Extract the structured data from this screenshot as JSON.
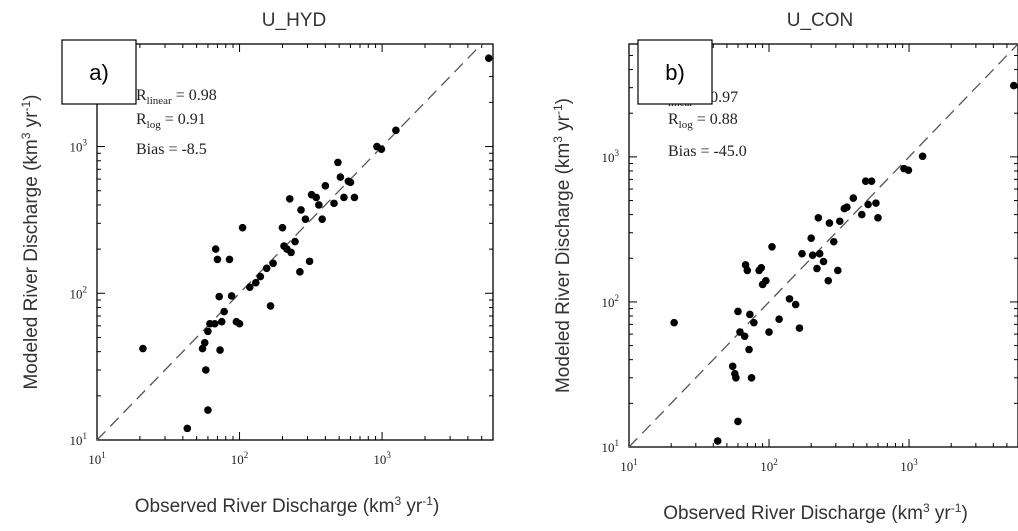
{
  "chart_data": [
    {
      "type": "scatter",
      "panel_label": "a)",
      "title": "U_HYD",
      "xlabel": "Observed River Discharge (km",
      "xlabel_sup": "3",
      "xlabel_tail": " yr",
      "xlabel_sup2": "-1",
      "xlabel_end": ")",
      "ylabel": "Modeled River Discharge (km",
      "ylabel_sup": "3",
      "ylabel_tail": " yr",
      "ylabel_sup2": "-1",
      "ylabel_end": ")",
      "xscale": "log",
      "yscale": "log",
      "xlim": [
        10,
        6000
      ],
      "ylim": [
        10,
        5000
      ],
      "xticks": [
        {
          "v": 10,
          "base": "10",
          "exp": "1"
        },
        {
          "v": 100,
          "base": "10",
          "exp": "2"
        },
        {
          "v": 1000,
          "base": "10",
          "exp": "3"
        }
      ],
      "yticks": [
        {
          "v": 10,
          "base": "10",
          "exp": "1"
        },
        {
          "v": 100,
          "base": "10",
          "exp": "2"
        },
        {
          "v": 1000,
          "base": "10",
          "exp": "3"
        }
      ],
      "reference_line": "1:1 dashed",
      "stats": [
        {
          "label": "R",
          "sub": "linear",
          "value": "= 0.98"
        },
        {
          "label": "R",
          "sub": "log",
          "value": "= 0.91"
        },
        {
          "label": "Bias =",
          "sub": "",
          "value": "-8.5"
        }
      ],
      "points": [
        [
          21,
          42
        ],
        [
          43,
          12
        ],
        [
          55,
          42
        ],
        [
          57,
          46
        ],
        [
          58,
          30
        ],
        [
          60,
          16
        ],
        [
          60,
          55
        ],
        [
          62,
          62
        ],
        [
          67,
          62
        ],
        [
          68,
          200
        ],
        [
          70,
          170
        ],
        [
          72,
          95
        ],
        [
          73,
          41
        ],
        [
          75,
          64
        ],
        [
          78,
          75
        ],
        [
          85,
          170
        ],
        [
          88,
          96
        ],
        [
          95,
          64
        ],
        [
          100,
          62
        ],
        [
          105,
          280
        ],
        [
          118,
          110
        ],
        [
          130,
          118
        ],
        [
          140,
          130
        ],
        [
          155,
          148
        ],
        [
          165,
          82
        ],
        [
          172,
          160
        ],
        [
          200,
          280
        ],
        [
          205,
          210
        ],
        [
          215,
          200
        ],
        [
          225,
          440
        ],
        [
          230,
          190
        ],
        [
          245,
          225
        ],
        [
          265,
          140
        ],
        [
          270,
          370
        ],
        [
          290,
          320
        ],
        [
          310,
          165
        ],
        [
          320,
          470
        ],
        [
          345,
          450
        ],
        [
          360,
          400
        ],
        [
          380,
          320
        ],
        [
          400,
          540
        ],
        [
          460,
          410
        ],
        [
          490,
          780
        ],
        [
          510,
          620
        ],
        [
          540,
          450
        ],
        [
          580,
          580
        ],
        [
          600,
          570
        ],
        [
          640,
          450
        ],
        [
          920,
          1000
        ],
        [
          990,
          960
        ],
        [
          1250,
          1290
        ],
        [
          5600,
          4000
        ]
      ]
    },
    {
      "type": "scatter",
      "panel_label": "b)",
      "title": "U_CON",
      "xlabel": "Observed River Discharge (km",
      "xlabel_sup": "3",
      "xlabel_tail": " yr",
      "xlabel_sup2": "-1",
      "xlabel_end": ")",
      "ylabel": "Modeled River Discharge (km",
      "ylabel_sup": "3",
      "ylabel_tail": " yr",
      "ylabel_sup2": "-1",
      "ylabel_end": ")",
      "xscale": "log",
      "yscale": "log",
      "xlim": [
        10,
        6000
      ],
      "ylim": [
        10,
        6000
      ],
      "xticks": [
        {
          "v": 10,
          "base": "10",
          "exp": "1"
        },
        {
          "v": 100,
          "base": "10",
          "exp": "2"
        },
        {
          "v": 1000,
          "base": "10",
          "exp": "3"
        }
      ],
      "yticks": [
        {
          "v": 10,
          "base": "10",
          "exp": "1"
        },
        {
          "v": 100,
          "base": "10",
          "exp": "2"
        },
        {
          "v": 1000,
          "base": "10",
          "exp": "3"
        }
      ],
      "reference_line": "1:1 dashed",
      "stats": [
        {
          "label": "",
          "sub": "linear",
          "value": "= 0.97"
        },
        {
          "label": "R",
          "sub": "log",
          "value": "= 0.88"
        },
        {
          "label": "Bias =",
          "sub": "",
          "value": "-45.0"
        }
      ],
      "points": [
        [
          21,
          72
        ],
        [
          43,
          11
        ],
        [
          55,
          36
        ],
        [
          57,
          32
        ],
        [
          58,
          30
        ],
        [
          60,
          15
        ],
        [
          60,
          86
        ],
        [
          62,
          62
        ],
        [
          67,
          58
        ],
        [
          68,
          180
        ],
        [
          70,
          165
        ],
        [
          72,
          47
        ],
        [
          73,
          82
        ],
        [
          75,
          30
        ],
        [
          78,
          72
        ],
        [
          85,
          165
        ],
        [
          88,
          172
        ],
        [
          90,
          132
        ],
        [
          95,
          140
        ],
        [
          100,
          62
        ],
        [
          105,
          240
        ],
        [
          118,
          76
        ],
        [
          140,
          105
        ],
        [
          155,
          96
        ],
        [
          165,
          66
        ],
        [
          172,
          215
        ],
        [
          200,
          275
        ],
        [
          205,
          210
        ],
        [
          220,
          170
        ],
        [
          225,
          380
        ],
        [
          230,
          215
        ],
        [
          245,
          190
        ],
        [
          265,
          140
        ],
        [
          270,
          350
        ],
        [
          290,
          260
        ],
        [
          310,
          165
        ],
        [
          320,
          360
        ],
        [
          345,
          440
        ],
        [
          360,
          450
        ],
        [
          400,
          520
        ],
        [
          460,
          400
        ],
        [
          490,
          680
        ],
        [
          510,
          470
        ],
        [
          540,
          680
        ],
        [
          580,
          480
        ],
        [
          600,
          380
        ],
        [
          920,
          830
        ],
        [
          990,
          810
        ],
        [
          1250,
          1010
        ],
        [
          5600,
          3100
        ]
      ]
    }
  ]
}
